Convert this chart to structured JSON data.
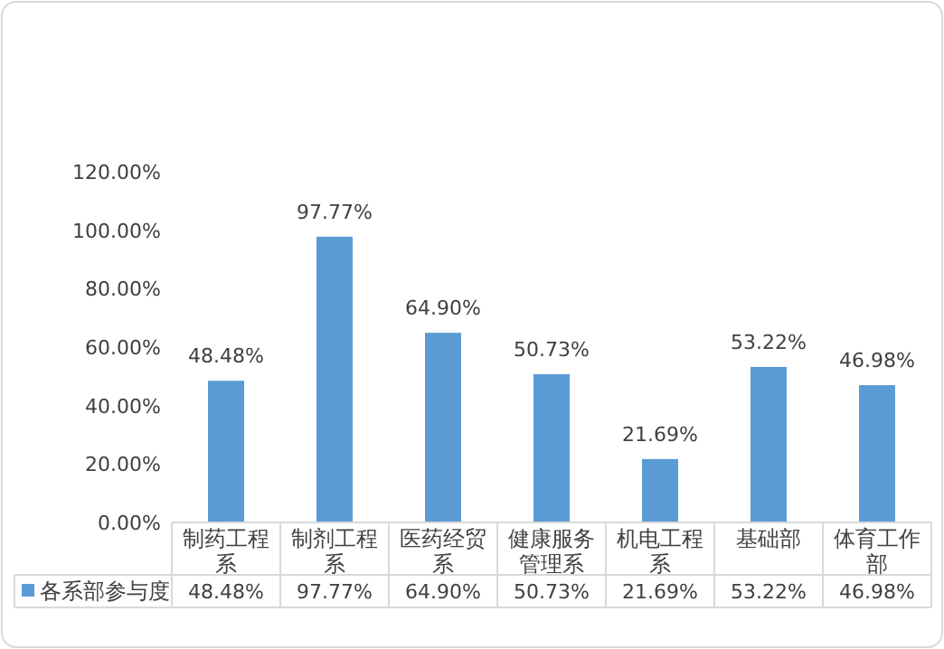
{
  "chart_data": {
    "type": "bar",
    "categories": [
      "制药工程系",
      "制剂工程系",
      "医药经贸系",
      "健康服务管理系",
      "机电工程系",
      "基础部",
      "体育工作部"
    ],
    "series": [
      {
        "name": "各系部参与度",
        "color": "#5b9bd5",
        "values": [
          48.48,
          97.77,
          64.9,
          50.73,
          21.69,
          53.22,
          46.98
        ]
      }
    ],
    "value_labels": [
      "48.48%",
      "97.77%",
      "64.90%",
      "50.73%",
      "21.69%",
      "53.22%",
      "46.98%"
    ],
    "ylim": [
      0,
      120
    ],
    "yticks": [
      {
        "value": 0,
        "label": "0.00%"
      },
      {
        "value": 20,
        "label": "20.00%"
      },
      {
        "value": 40,
        "label": "40.00%"
      },
      {
        "value": 60,
        "label": "60.00%"
      },
      {
        "value": 80,
        "label": "80.00%"
      },
      {
        "value": 100,
        "label": "100.00%"
      },
      {
        "value": 120,
        "label": "120.00%"
      }
    ],
    "legend": "bottom left",
    "grid": false
  }
}
